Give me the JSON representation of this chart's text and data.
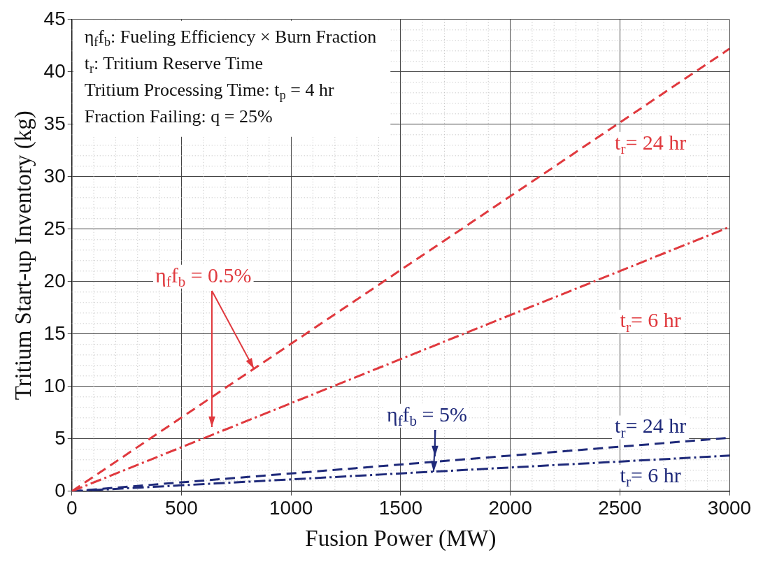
{
  "chart_data": {
    "type": "line",
    "xlabel": "Fusion Power (MW)",
    "ylabel": "Tritium Start-up Inventory (kg)",
    "x": [
      0,
      3000
    ],
    "series": [
      {
        "name": "t$_{r}$= 24 hr",
        "color": "#e0393e",
        "values": [
          0,
          42.2
        ],
        "line_style": "dashed"
      },
      {
        "name": "t$_{r}$= 6 hr",
        "color": "#e0393e",
        "values": [
          0,
          25.2
        ],
        "line_style": "dashdot"
      },
      {
        "name": "t$_{r}$= 24 hr",
        "color": "#1f2a7a",
        "values": [
          0,
          5.1
        ],
        "line_style": "dashed"
      },
      {
        "name": "t$_{r}$= 6 hr",
        "color": "#1f2a7a",
        "values": [
          0,
          3.4
        ],
        "line_style": "dashdot"
      }
    ],
    "xlim": [
      0,
      3000
    ],
    "ylim": [
      0,
      45
    ],
    "xticks": [
      0,
      500,
      1000,
      1500,
      2000,
      2500,
      3000
    ],
    "yticks": [
      0,
      5,
      10,
      15,
      20,
      25,
      30,
      35,
      40,
      45
    ],
    "grid": true,
    "legend": false,
    "marker": "none",
    "annotations": [
      "η$_{f}$f$_{b}$: Fueling Efficiency × Burn Fraction",
      "t$_{r}$: Tritium Reserve Time",
      "Tritium Processing Time: t$_{p}$ = 4 hr",
      "Fraction Failing: q = 25%",
      {
        "text": "η$_{f}$f$_{b}$ = 0.5%",
        "x": 830,
        "y": 11.7
      },
      {
        "text": "η$_{f}$f$_{b}$ = 5%",
        "x": 1650,
        "y": 1.87
      }
    ]
  }
}
